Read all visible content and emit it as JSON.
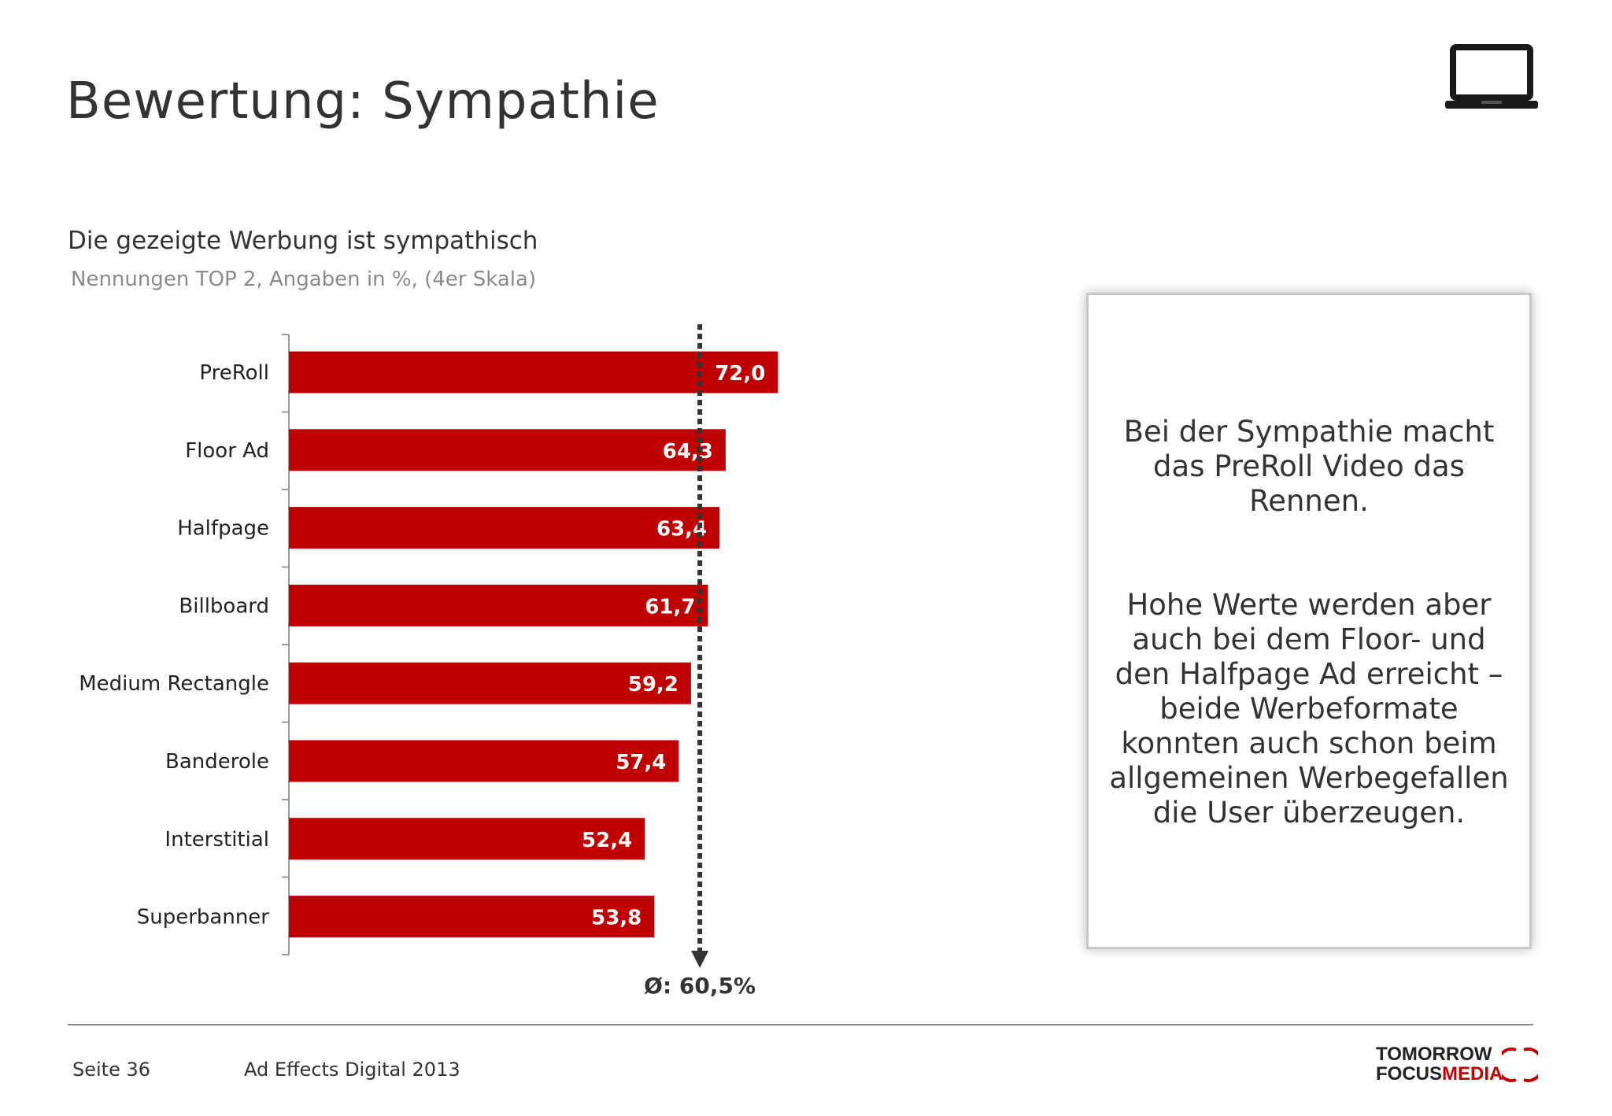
{
  "header": {
    "title": "Bewertung: Sympathie",
    "device_icon": "laptop-icon"
  },
  "chart_data": {
    "type": "bar",
    "orientation": "horizontal",
    "title": "Die gezeigte Werbung ist sympathisch",
    "subtitle": "Nennungen TOP 2, Angaben in %, (4er Skala)",
    "categories": [
      "PreRoll",
      "Floor Ad",
      "Halfpage",
      "Billboard",
      "Medium Rectangle",
      "Banderole",
      "Interstitial",
      "Superbanner"
    ],
    "values": [
      72.0,
      64.3,
      63.4,
      61.7,
      59.2,
      57.4,
      52.4,
      53.8
    ],
    "value_labels": [
      "72,0",
      "64,3",
      "63,4",
      "61,7",
      "59,2",
      "57,4",
      "52,4",
      "53,8"
    ],
    "average": 60.5,
    "average_label": "Ø: 60,5%",
    "xlim": [
      0,
      100
    ],
    "bar_color": "#c00000",
    "grid": false
  },
  "info_box": {
    "paragraph1": "Bei der Sympathie macht das PreRoll Video das Rennen.",
    "paragraph2": "Hohe Werte werden aber auch bei dem Floor- und den Halfpage Ad erreicht – beide Werbeformate konnten auch schon beim allgemeinen Werbegefallen die User überzeugen."
  },
  "footer": {
    "page": "Seite 36",
    "document": "Ad Effects Digital 2013",
    "logo_line1": "TOMORROW",
    "logo_focus": "FOCUS",
    "logo_media": "MEDIA"
  },
  "colors": {
    "accent": "#c00000",
    "text": "#333333",
    "muted": "#8a8a8a"
  }
}
